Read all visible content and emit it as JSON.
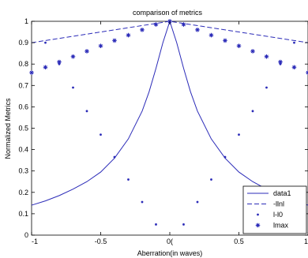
{
  "chart_data": {
    "type": "line",
    "title": "comparison of metrics",
    "xlabel": "Aberration(in waves)",
    "ylabel": "Normalized Metrics",
    "xlim": [
      -1,
      1
    ],
    "ylim": [
      0,
      1
    ],
    "xticks": [
      "-1",
      "-0.5",
      "0(",
      "0.5",
      "1"
    ],
    "xtick_values": [
      -1,
      -0.5,
      0,
      0.5,
      1
    ],
    "yticks": [
      "0",
      "0.1",
      "0.2",
      "0.3",
      "0.4",
      "0.5",
      "0.6",
      "0.7",
      "0.8",
      "0.9",
      "1"
    ],
    "ytick_values": [
      0,
      0.1,
      0.2,
      0.3,
      0.4,
      0.5,
      0.6,
      0.7,
      0.8,
      0.9,
      1
    ],
    "grid": false,
    "legend_position": "bottom-right",
    "color": "#2b2bb8",
    "series": [
      {
        "name": "data1",
        "style": "solid",
        "x": [
          -1,
          -0.9,
          -0.8,
          -0.7,
          -0.6,
          -0.5,
          -0.4,
          -0.3,
          -0.2,
          -0.15,
          -0.1,
          -0.05,
          0,
          0.05,
          0.1,
          0.15,
          0.2,
          0.3,
          0.4,
          0.5,
          0.6,
          0.7,
          0.8,
          0.9,
          1
        ],
        "y": [
          0.14,
          0.16,
          0.185,
          0.215,
          0.25,
          0.295,
          0.36,
          0.45,
          0.58,
          0.67,
          0.78,
          0.9,
          1.0,
          0.9,
          0.78,
          0.67,
          0.58,
          0.45,
          0.36,
          0.295,
          0.25,
          0.215,
          0.185,
          0.16,
          0.14
        ]
      },
      {
        "name": "-llnl",
        "style": "dashed",
        "x": [
          -1,
          -0.5,
          0,
          0.5,
          1
        ],
        "y": [
          0.9,
          0.95,
          1.0,
          0.95,
          0.9
        ]
      },
      {
        "name": "l-l0",
        "style": "dot",
        "x": [
          -0.9,
          -0.8,
          -0.7,
          -0.6,
          -0.5,
          -0.4,
          -0.3,
          -0.2,
          -0.1,
          0,
          0.1,
          0.2,
          0.3,
          0.4,
          0.5,
          0.6,
          0.7,
          0.8,
          0.9
        ],
        "y": [
          0.9,
          0.8,
          0.69,
          0.58,
          0.47,
          0.365,
          0.26,
          0.155,
          0.05,
          1.0,
          0.05,
          0.155,
          0.26,
          0.365,
          0.47,
          0.58,
          0.69,
          0.8,
          0.9
        ]
      },
      {
        "name": "lmax",
        "style": "star",
        "x": [
          -1,
          -0.9,
          -0.8,
          -0.7,
          -0.6,
          -0.5,
          -0.4,
          -0.3,
          -0.2,
          -0.1,
          0,
          0.1,
          0.2,
          0.3,
          0.4,
          0.5,
          0.6,
          0.7,
          0.8,
          0.9,
          1
        ],
        "y": [
          0.76,
          0.785,
          0.81,
          0.835,
          0.86,
          0.885,
          0.91,
          0.935,
          0.96,
          0.985,
          1.0,
          0.985,
          0.96,
          0.935,
          0.91,
          0.885,
          0.86,
          0.835,
          0.81,
          0.785,
          0.76
        ]
      }
    ]
  }
}
